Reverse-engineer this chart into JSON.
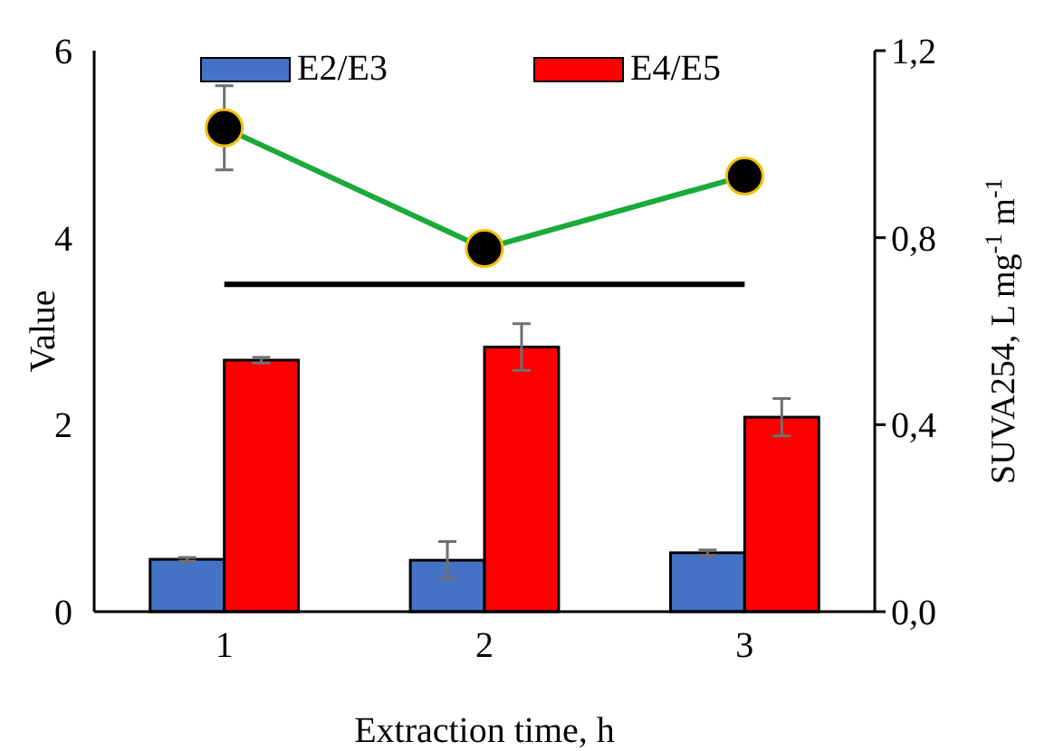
{
  "chart_data": {
    "type": "bar",
    "xlabel": "Extraction time, h",
    "ylabel": "Value",
    "y2label": "SUVA254, L mg$^{-1}$ m$^{-1}$",
    "categories": [
      "1",
      "2",
      "3"
    ],
    "series": [
      {
        "name": "E2/E3",
        "color": "#4472c4",
        "values": [
          0.56,
          0.55,
          0.63
        ],
        "errors": [
          0.02,
          0.2,
          0.03
        ]
      },
      {
        "name": "E4/E5",
        "color": "#ff0000",
        "values": [
          2.69,
          2.83,
          2.08
        ],
        "errors": [
          0.03,
          0.25,
          0.2
        ]
      },
      {
        "type": "line",
        "axis": "y2",
        "color": "#1aaa3a",
        "marker": "circle",
        "values": [
          1.035,
          0.777,
          0.932
        ],
        "errors": [
          0.09,
          null,
          null
        ]
      }
    ],
    "ylim": [
      0,
      6
    ],
    "yticks": [
      0,
      2,
      4,
      6
    ],
    "y2lim": [
      0,
      1.2
    ],
    "y2ticks": [
      {
        "value": 0,
        "label": "0,0"
      },
      {
        "value": 0.4,
        "label": "0,4"
      },
      {
        "value": 0.8,
        "label": "0,8"
      },
      {
        "value": 1.2,
        "label": "1,2"
      }
    ],
    "ref_lines": [
      {
        "axis": "y",
        "value": 3.5,
        "color": "#000000"
      }
    ],
    "legend": "top",
    "grid": false
  }
}
